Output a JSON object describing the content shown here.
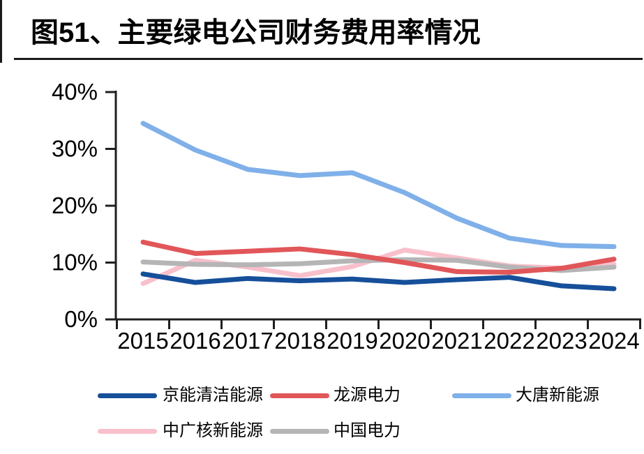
{
  "figure": {
    "title": "图51、主要绿电公司财务费用率情况"
  },
  "chart_data": {
    "type": "line",
    "title": "主要绿电公司财务费用率情况",
    "xlabel": "",
    "ylabel": "",
    "categories": [
      "2015",
      "2016",
      "2017",
      "2018",
      "2019",
      "2020",
      "2021",
      "2022",
      "2023",
      "2024"
    ],
    "series": [
      {
        "name": "京能清洁能源",
        "color": "#164F9A",
        "values": [
          8.0,
          6.5,
          7.2,
          6.8,
          7.1,
          6.5,
          7.0,
          7.4,
          5.9,
          5.4
        ]
      },
      {
        "name": "龙源电力",
        "color": "#E15659",
        "values": [
          13.6,
          11.6,
          12.0,
          12.4,
          11.4,
          10.0,
          8.4,
          8.3,
          9.0,
          10.6
        ]
      },
      {
        "name": "大唐新能源",
        "color": "#7FB0E9",
        "values": [
          34.5,
          29.8,
          26.4,
          25.3,
          25.8,
          22.3,
          17.8,
          14.3,
          13.0,
          12.8
        ]
      },
      {
        "name": "中广核新能源",
        "color": "#F8C0CB",
        "values": [
          6.3,
          10.4,
          9.2,
          7.7,
          9.3,
          12.2,
          10.8,
          9.4,
          9.0,
          9.7
        ]
      },
      {
        "name": "中国电力",
        "color": "#B5B5B6",
        "values": [
          10.1,
          9.7,
          9.6,
          9.8,
          10.3,
          10.5,
          10.4,
          9.2,
          8.6,
          9.2
        ]
      }
    ],
    "ylim": [
      0,
      40
    ],
    "y_ticks": [
      "0%",
      "10%",
      "20%",
      "30%",
      "40%"
    ],
    "grid": false,
    "legend_position": "bottom",
    "axis_color": "#1f1f1f"
  }
}
